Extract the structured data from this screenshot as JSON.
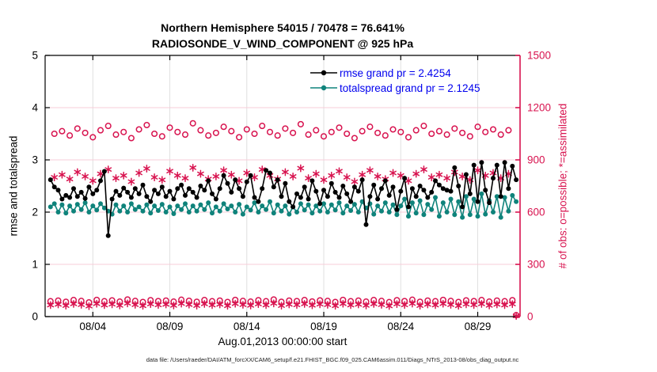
{
  "chart_data": {
    "type": "line",
    "title": "Northern Hemisphere 54015 / 70478 = 76.641%",
    "subtitle": "RADIOSONDE_V_WIND_COMPONENT @ 925 hPa",
    "xlabel": "Aug.01,2013 00:00:00 start",
    "ylabel_left": "rmse and totalspread",
    "ylabel_right": "# of obs: o=possible; *=assimilated",
    "caption": "data file: /Users/raeder/DAI/ATM_forcXX/CAM6_setup/f.e21.FHIST_BGC.f09_025.CAM6assim.011/Diags_NTrS_2013-08/obs_diag_output.nc",
    "x_tick_labels": [
      "08/04",
      "08/09",
      "08/14",
      "08/19",
      "08/24",
      "08/29"
    ],
    "x_tick_days": [
      3,
      8,
      13,
      18,
      23,
      28
    ],
    "x_domain_days": [
      -0.1,
      30.75
    ],
    "ylim_left": [
      0,
      5
    ],
    "yticks_left": [
      0,
      1,
      2,
      3,
      4,
      5
    ],
    "ylim_right": [
      0,
      1500
    ],
    "yticks_right": [
      0,
      300,
      600,
      900,
      1200,
      1500
    ],
    "grid": {
      "vertical_color": "#e0e0e0",
      "horizontal_color": "#f7ccd8"
    },
    "colors": {
      "rmse": "#000000",
      "totalspread": "#0f837b",
      "obs": "#d8134f",
      "legend_text": "#0000ee"
    },
    "legend": {
      "position": "top-right-inside",
      "entries": [
        {
          "label": "rmse grand pr = 2.4254",
          "color": "#000000"
        },
        {
          "label": "totalspread grand pr = 2.1245",
          "color": "#0f837b"
        }
      ]
    },
    "time": {
      "start_label": "Aug.01,2013 00:00:00",
      "step_days": 0.25,
      "first_point_day": 0.25,
      "points": 122
    },
    "series": {
      "rmse": [
        2.62,
        2.48,
        2.42,
        2.25,
        2.32,
        2.28,
        2.45,
        2.3,
        2.38,
        2.26,
        2.48,
        2.35,
        2.42,
        2.6,
        2.78,
        1.55,
        2.25,
        2.4,
        2.32,
        2.46,
        2.38,
        2.28,
        2.45,
        2.35,
        2.52,
        2.3,
        2.2,
        2.42,
        2.35,
        2.48,
        2.3,
        2.4,
        2.25,
        2.45,
        2.52,
        2.32,
        2.45,
        2.38,
        2.28,
        2.5,
        2.42,
        2.6,
        2.35,
        2.25,
        2.45,
        2.7,
        2.55,
        2.38,
        2.62,
        2.45,
        2.3,
        2.58,
        2.7,
        2.28,
        2.2,
        2.45,
        2.8,
        2.75,
        2.48,
        2.62,
        2.3,
        2.55,
        2.2,
        2.1,
        2.35,
        2.28,
        2.48,
        2.25,
        2.6,
        2.4,
        2.16,
        2.42,
        2.3,
        2.55,
        2.38,
        2.28,
        2.5,
        2.35,
        2.2,
        2.48,
        2.4,
        2.62,
        1.76,
        2.3,
        2.52,
        2.25,
        2.45,
        2.6,
        2.32,
        2.48,
        2.05,
        2.4,
        2.65,
        2.1,
        2.45,
        2.3,
        2.5,
        2.42,
        2.28,
        2.38,
        2.6,
        2.52,
        2.45,
        2.42,
        2.4,
        2.85,
        2.5,
        2.1,
        2.72,
        2.35,
        2.9,
        2.2,
        2.95,
        2.42,
        2.18,
        2.65,
        2.9,
        2.3,
        2.95,
        2.45,
        2.88,
        2.62
      ],
      "totalspread": [
        2.1,
        2.16,
        2.0,
        2.14,
        1.98,
        2.12,
        2.02,
        2.15,
        2.05,
        2.18,
        2.0,
        2.12,
        2.04,
        2.16,
        2.08,
        2.02,
        1.96,
        2.14,
        2.02,
        2.12,
        2.0,
        2.16,
        2.05,
        2.1,
        2.02,
        2.14,
        1.98,
        2.12,
        2.03,
        2.15,
        2.0,
        2.1,
        1.97,
        2.12,
        2.05,
        2.16,
        2.0,
        2.12,
        2.02,
        2.14,
        2.05,
        2.18,
        1.98,
        2.1,
        2.02,
        2.16,
        2.06,
        2.12,
        2.0,
        2.15,
        1.96,
        2.1,
        2.04,
        2.18,
        2.0,
        2.12,
        2.05,
        2.2,
        1.98,
        2.14,
        2.02,
        2.12,
        1.96,
        2.1,
        2.0,
        2.16,
        2.04,
        2.14,
        1.98,
        2.12,
        2.02,
        2.16,
        2.0,
        2.14,
        2.04,
        2.18,
        1.98,
        2.12,
        2.03,
        2.15,
        2.0,
        2.2,
        2.08,
        2.16,
        1.96,
        2.12,
        2.02,
        2.18,
        2.0,
        2.14,
        1.95,
        2.12,
        2.25,
        1.92,
        2.18,
        1.98,
        2.22,
        1.95,
        2.15,
        2.05,
        2.28,
        1.92,
        2.18,
        2.0,
        2.25,
        1.95,
        2.2,
        1.9,
        2.3,
        1.95,
        2.25,
        1.92,
        2.35,
        1.96,
        2.22,
        2.0,
        2.3,
        1.9,
        2.28,
        2.02,
        2.32,
        2.2
      ],
      "possible": [
        88,
        1050,
        92,
        1065,
        85,
        1040,
        95,
        1080,
        90,
        1055,
        82,
        1030,
        96,
        1070,
        88,
        1095,
        93,
        1045,
        86,
        1060,
        98,
        1025,
        90,
        1075,
        84,
        1100,
        94,
        1050,
        89,
        1035,
        92,
        1085,
        86,
        1060,
        97,
        1045,
        91,
        1110,
        85,
        1070,
        95,
        1040,
        88,
        1055,
        92,
        1090,
        84,
        1065,
        96,
        1030,
        90,
        1075,
        86,
        1050,
        94,
        1095,
        88,
        1060,
        98,
        1040,
        85,
        1080,
        92,
        1055,
        89,
        1105,
        95,
        1045,
        87,
        1070,
        93,
        1035,
        90,
        1060,
        84,
        1085,
        96,
        1050,
        88,
        1025,
        92,
        1065,
        86,
        1090,
        95,
        1055,
        90,
        1040,
        83,
        1075,
        94,
        1060,
        89,
        1030,
        97,
        1070,
        85,
        1095,
        92,
        1050,
        88,
        1065,
        96,
        1045,
        90,
        1080,
        84,
        1055,
        93,
        1035,
        89,
        1090,
        95,
        1060,
        86,
        1075,
        92,
        1045,
        88,
        1070,
        94,
        8
      ],
      "assimilated": [
        66,
        800,
        70,
        815,
        63,
        790,
        73,
        830,
        68,
        805,
        60,
        780,
        74,
        820,
        66,
        845,
        71,
        795,
        64,
        810,
        76,
        775,
        68,
        825,
        62,
        850,
        72,
        800,
        67,
        785,
        70,
        835,
        64,
        810,
        75,
        795,
        69,
        855,
        63,
        820,
        73,
        790,
        66,
        805,
        70,
        840,
        62,
        815,
        74,
        780,
        68,
        825,
        64,
        800,
        72,
        845,
        66,
        810,
        76,
        790,
        63,
        830,
        70,
        805,
        67,
        852,
        73,
        795,
        65,
        820,
        71,
        785,
        68,
        810,
        62,
        835,
        74,
        800,
        66,
        775,
        70,
        815,
        64,
        840,
        73,
        805,
        68,
        790,
        61,
        825,
        72,
        810,
        67,
        780,
        75,
        820,
        63,
        845,
        70,
        800,
        66,
        815,
        74,
        795,
        68,
        830,
        62,
        805,
        71,
        785,
        67,
        840,
        73,
        810,
        64,
        825,
        70,
        795,
        66,
        820,
        72,
        4
      ]
    }
  }
}
